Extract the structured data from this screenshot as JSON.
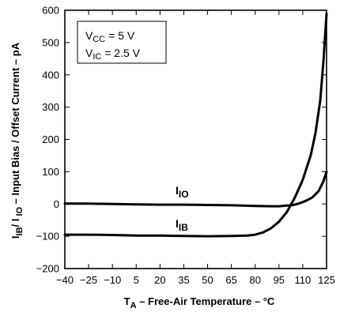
{
  "chart_data": {
    "type": "line",
    "title": "",
    "xlabel": {
      "main": "T",
      "sub": "A",
      "rest": " – Free-Air Temperature – °C"
    },
    "ylabel": {
      "p1": "I",
      "s1": "IB",
      "p2": "/ I",
      "s2": " IO",
      "rest": " – Input Bias / Offset Current – pA"
    },
    "xlim": [
      -40,
      125
    ],
    "ylim": [
      -200,
      600
    ],
    "xticks": [
      -40,
      -25,
      -10,
      5,
      20,
      35,
      50,
      65,
      80,
      95,
      110,
      125
    ],
    "yticks": [
      -200,
      -100,
      0,
      100,
      200,
      300,
      400,
      500,
      600
    ],
    "grid": false,
    "annotations": {
      "vcc": {
        "main": "V",
        "sub": "CC",
        "rest": " = 5 V"
      },
      "vic": {
        "main": "V",
        "sub": "IC",
        "rest": " = 2.5 V"
      }
    },
    "series": [
      {
        "name": "IIO",
        "label_main": "I",
        "label_sub": "IO",
        "x": [
          -40,
          -25,
          -10,
          5,
          20,
          35,
          50,
          65,
          80,
          90,
          95,
          100,
          104,
          108,
          112,
          116,
          120,
          123,
          125
        ],
        "y": [
          1,
          1,
          0,
          -1,
          -2,
          -2,
          -3,
          -4,
          -6,
          -7,
          -7,
          -5,
          -3,
          2,
          10,
          20,
          40,
          70,
          100
        ]
      },
      {
        "name": "IIB",
        "label_main": "I",
        "label_sub": "IB",
        "x": [
          -40,
          -25,
          -10,
          5,
          20,
          35,
          50,
          65,
          75,
          80,
          85,
          90,
          95,
          100,
          105,
          110,
          115,
          118,
          121,
          123,
          125
        ],
        "y": [
          -95,
          -95,
          -96,
          -98,
          -98,
          -99,
          -100,
          -99,
          -98,
          -95,
          -88,
          -75,
          -55,
          -25,
          20,
          75,
          150,
          220,
          320,
          440,
          590
        ]
      }
    ]
  }
}
